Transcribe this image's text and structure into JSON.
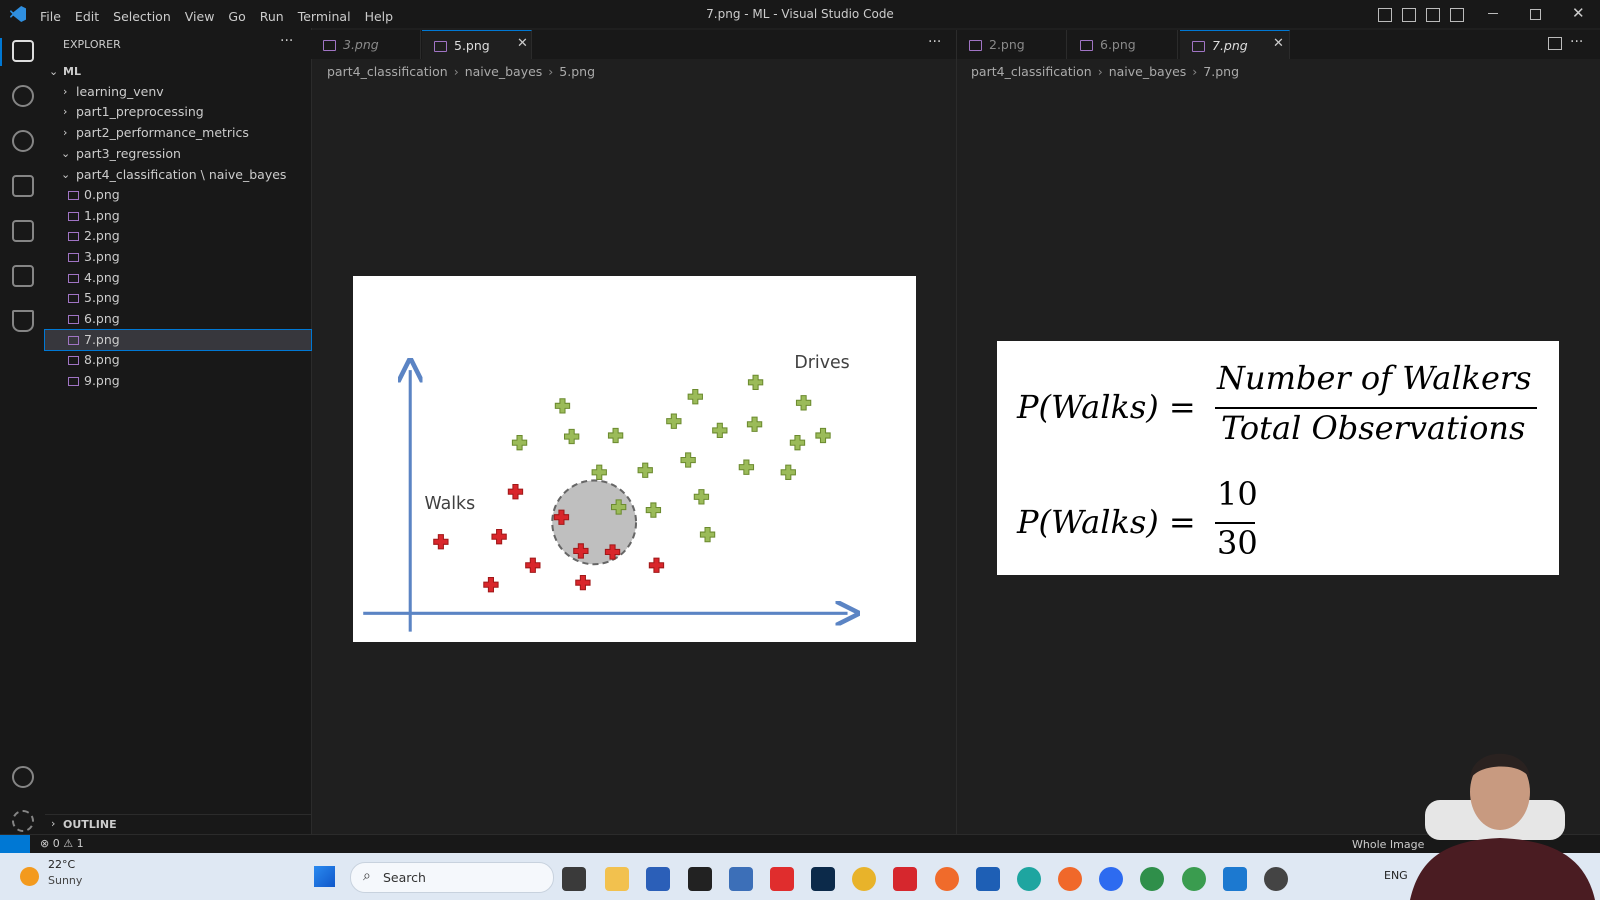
{
  "window": {
    "title": "7.png - ML - Visual Studio Code",
    "menu": [
      "File",
      "Edit",
      "Selection",
      "View",
      "Go",
      "Run",
      "Terminal",
      "Help"
    ]
  },
  "sidebar": {
    "header": "EXPLORER",
    "root": "ML",
    "folders": [
      "learning_venv",
      "part1_preprocessing",
      "part2_performance_metrics",
      "part3_regression",
      "part4_classification \\ naive_bayes"
    ],
    "files": [
      "0.png",
      "1.png",
      "2.png",
      "3.png",
      "4.png",
      "5.png",
      "6.png",
      "7.png",
      "8.png",
      "9.png"
    ],
    "outline": "OUTLINE"
  },
  "left_group": {
    "tabs": [
      "3.png",
      "5.png"
    ],
    "breadcrumbs": [
      "part4_classification",
      "naive_bayes",
      "5.png"
    ],
    "image": {
      "label_left": "Walks",
      "label_right": "Drives"
    }
  },
  "right_group": {
    "tabs": [
      "2.png",
      "6.png",
      "7.png"
    ],
    "breadcrumbs": [
      "part4_classification",
      "naive_bayes",
      "7.png"
    ],
    "formula": {
      "lhs": "P(Walks) =",
      "numerator": "Number of Walkers",
      "denominator": "Total Observations",
      "lhs2": "P(Walks) =",
      "numerator2": "10",
      "denominator2": "30"
    }
  },
  "status_bar": {
    "errors": "0",
    "warnings": "1",
    "zoom": "Whole Image"
  },
  "taskbar": {
    "temperature": "22°C",
    "weather": "Sunny",
    "search": "Search",
    "language": "ENG"
  }
}
